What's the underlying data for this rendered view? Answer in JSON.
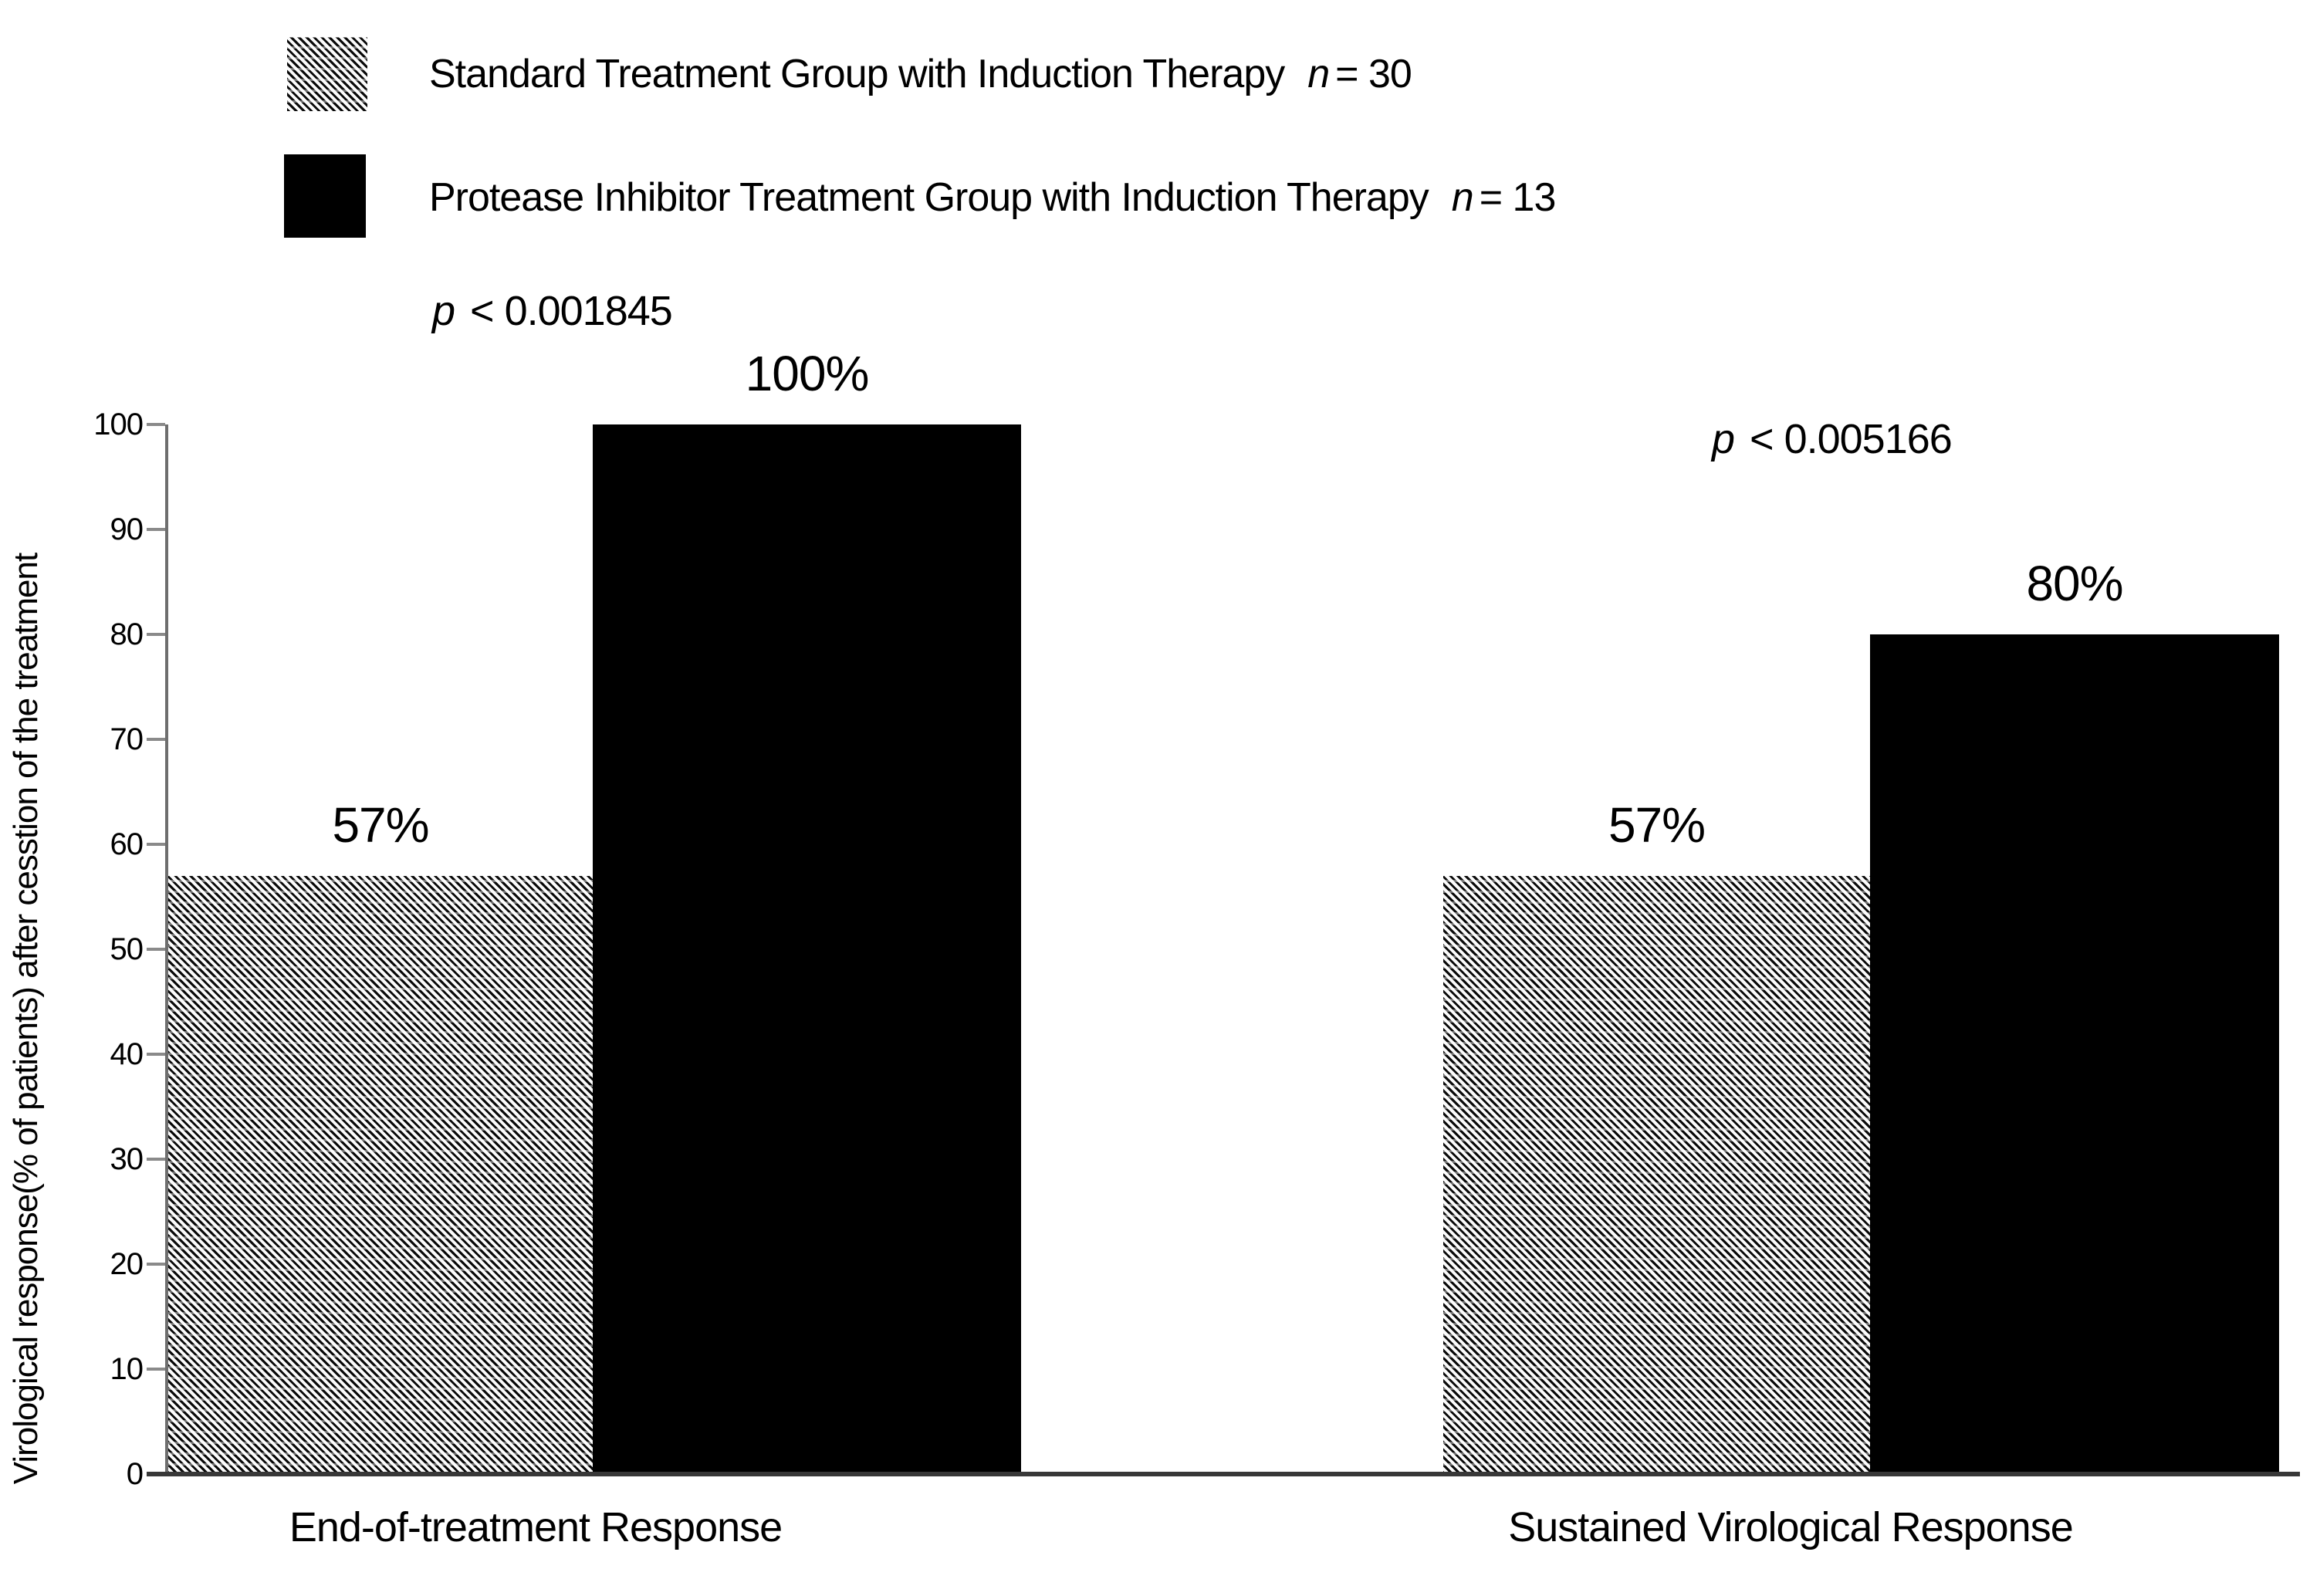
{
  "figure": {
    "background": "#ffffff",
    "text_color": "#000000",
    "axis_color": "#6e6e6e",
    "tick_color": "#8a8a8a",
    "baseline_color": "#383838",
    "solid_bar_color": "#000000",
    "hatch_line_color": "#0a0a0a"
  },
  "legend": {
    "items": [
      {
        "swatch": "hatched",
        "label": "Standard Treatment Group with Induction Therapy",
        "n_symbol": "n",
        "n_text": "= 30"
      },
      {
        "swatch": "solid-black",
        "label": "Protease Inhibitor Treatment Group with Induction Therapy",
        "n_symbol": "n",
        "n_text": "= 13"
      }
    ]
  },
  "annotations": [
    {
      "symbol": "p",
      "text": "< 0.001845"
    },
    {
      "symbol": "p",
      "text": "< 0.005166"
    }
  ],
  "chart_data": {
    "type": "bar",
    "title": "",
    "categories": [
      "End-of-treatment Response",
      "Sustained Virological Response"
    ],
    "series": [
      {
        "name": "Standard Treatment Group with Induction Therapy",
        "n": 30,
        "style": "hatched",
        "values": [
          57,
          57
        ]
      },
      {
        "name": "Protease Inhibitor Treatment Group with Induction Therapy",
        "n": 13,
        "style": "solid-black",
        "values": [
          100,
          80
        ]
      }
    ],
    "value_labels": [
      [
        "57%",
        "57%"
      ],
      [
        "100%",
        "80%"
      ]
    ],
    "p_values": [
      "p < 0.001845",
      "p < 0.005166"
    ],
    "xlabel": "",
    "ylabel": "Virological response(% of patients) after cesstion of the treatment",
    "ylim": [
      0,
      100
    ],
    "yticks": [
      0,
      10,
      20,
      30,
      40,
      50,
      60,
      70,
      80,
      90,
      100
    ],
    "grid": false,
    "legend_position": "top-left"
  }
}
